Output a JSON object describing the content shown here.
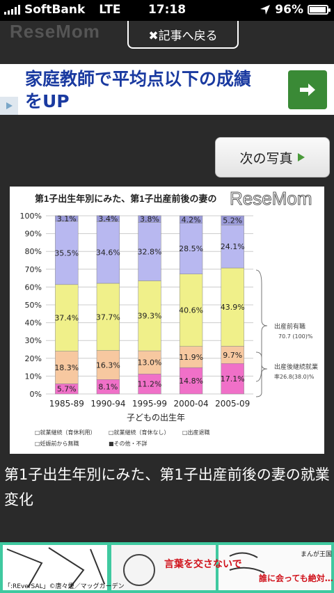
{
  "status_bar": {
    "carrier": "SoftBank",
    "network": "LTE",
    "time": "17:18",
    "battery": "96%",
    "battery_level": 0.96
  },
  "header": {
    "logo": "ReseMom",
    "back_label": "✖記事へ戻る"
  },
  "ad": {
    "line1": "家庭教師で平均点以下の成績",
    "line2": "をUP"
  },
  "next_photo_label": "次の写真",
  "photo": {
    "watermark": "ReseMom",
    "chart_data": {
      "type": "bar",
      "title": "第1子出生年別にみた、第1子出産前後の妻の",
      "xlabel": "子どもの出生年",
      "categories": [
        "1985-89",
        "1990-94",
        "1995-99",
        "2000-04",
        "2005-09"
      ],
      "yticks": [
        "100%",
        "90%",
        "80%",
        "70%",
        "60%",
        "50%",
        "40%",
        "30%",
        "20%",
        "10%",
        "0%"
      ],
      "ylim": [
        0,
        100
      ],
      "stacked": true,
      "series": [
        {
          "color": "#f070c8",
          "values": [
            5.7,
            8.1,
            11.2,
            14.8,
            17.1
          ]
        },
        {
          "color": "#f7c8a0",
          "values": [
            18.3,
            16.3,
            13.0,
            11.9,
            9.7
          ]
        },
        {
          "color": "#f0f08a",
          "values": [
            37.4,
            37.7,
            39.3,
            40.6,
            43.9
          ]
        },
        {
          "color": "#b8b8f0",
          "values": [
            35.5,
            34.6,
            32.8,
            28.5,
            24.1
          ]
        },
        {
          "color": "#9a9ad8",
          "values": [
            3.1,
            3.4,
            3.8,
            4.2,
            5.2
          ]
        }
      ],
      "labels": [
        [
          "5.7%",
          "8.1%",
          "11.2%",
          "14.8%",
          "17.1%"
        ],
        [
          "18.3%",
          "16.3%",
          "13.0%",
          "11.9%",
          "9.7%"
        ],
        [
          "37.4%",
          "37.7%",
          "39.3%",
          "40.6%",
          "43.9%"
        ],
        [
          "35.5%",
          "34.6%",
          "32.8%",
          "28.5%",
          "24.1%"
        ],
        [
          "3.1%",
          "3.4%",
          "3.8%",
          "4.2%",
          "5.2%"
        ]
      ],
      "annotations": [
        {
          "text": "出産前有職"
        },
        {
          "text": "70.7 (100)%"
        },
        {
          "text": "出産後継続就業"
        },
        {
          "text": "率26.8(38.0)%"
        }
      ],
      "legend": [
        {
          "text": "□就業継続（育休利用）",
          "color": "#f070c8"
        },
        {
          "text": "□就業継続（育休なし）",
          "color": "#f7c8a0"
        },
        {
          "text": "□出産退職",
          "color": "#f0f08a"
        },
        {
          "text": "□妊娠前から無職",
          "color": "#b8b8f0"
        },
        {
          "text": "■その他・不詳",
          "color": "#9a9ad8"
        }
      ]
    }
  },
  "caption": "第1子出生年別にみた、第1子出産前後の妻の就業変化",
  "bottom_ad": {
    "credit": "「:REverSAL」©唐々煙／マッグガーデン",
    "bubble1": "言葉を交さないで",
    "bubble2": "誰に会っても絶対…",
    "side": "まんが王国"
  }
}
